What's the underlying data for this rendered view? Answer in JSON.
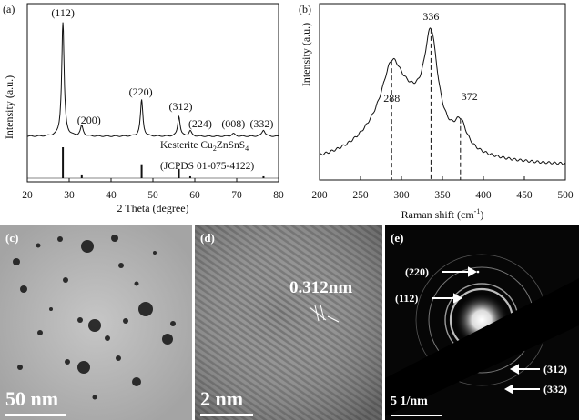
{
  "chart_data": [
    {
      "type": "line",
      "panel_label": "(a)",
      "xlabel": "2 Theta (degree)",
      "ylabel": "Intensity (a.u.)",
      "xlim": [
        20,
        80
      ],
      "xticks": [
        20,
        30,
        40,
        50,
        60,
        70,
        80
      ],
      "peaks": [
        {
          "label": "(112)",
          "x": 28.5
        },
        {
          "label": "(200)",
          "x": 33.0
        },
        {
          "label": "(220)",
          "x": 47.3
        },
        {
          "label": "(312)",
          "x": 56.2
        },
        {
          "label": "(224)",
          "x": 58.9
        },
        {
          "label": "(008)",
          "x": 69.2
        },
        {
          "label": "(332)",
          "x": 76.4
        }
      ],
      "reference_label": "Kesterite Cu",
      "reference_sub1": "2",
      "reference_mid": "ZnSnS",
      "reference_sub2": "4",
      "reference_card": "(JCPDS 01-075-4122)",
      "reference_lines": [
        {
          "x": 28.5,
          "h": 1.0
        },
        {
          "x": 33.0,
          "h": 0.12
        },
        {
          "x": 47.3,
          "h": 0.45
        },
        {
          "x": 56.2,
          "h": 0.3
        },
        {
          "x": 58.9,
          "h": 0.06
        },
        {
          "x": 76.4,
          "h": 0.06
        }
      ]
    },
    {
      "type": "line",
      "panel_label": "(b)",
      "xlabel": "Raman shift (cm",
      "xlabel_sup": "-1",
      "xlabel_end": ")",
      "ylabel": "Intensity (a.u.)",
      "xlim": [
        200,
        500
      ],
      "xticks": [
        200,
        250,
        300,
        350,
        400,
        450,
        500
      ],
      "peaks": [
        {
          "label": "288",
          "x": 288
        },
        {
          "label": "336",
          "x": 336
        },
        {
          "label": "372",
          "x": 372
        }
      ]
    }
  ],
  "images": {
    "c": {
      "label": "(c)",
      "scale": "50 nm"
    },
    "d": {
      "label": "(d)",
      "scale": "2 nm",
      "annotation": "0.312nm"
    },
    "e": {
      "label": "(e)",
      "scale": "5 1/nm",
      "rings": [
        "(220)",
        "(112)",
        "(312)",
        "(332)"
      ]
    }
  }
}
